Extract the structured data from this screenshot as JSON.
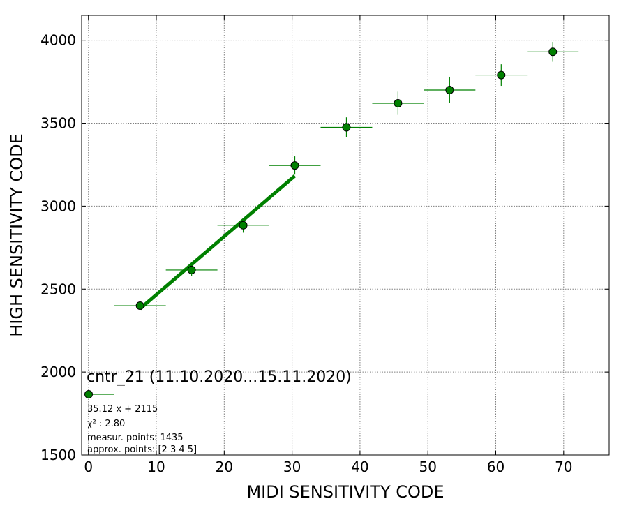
{
  "chart_data": {
    "type": "scatter",
    "xlabel": "MIDI SENSITIVITY CODE",
    "ylabel": "HIGH SENSITIVITY CODE",
    "xlim": [
      -1,
      76.7
    ],
    "ylim": [
      1500,
      4150
    ],
    "xticks": [
      0,
      10,
      20,
      30,
      40,
      50,
      60,
      70
    ],
    "yticks": [
      1500,
      2000,
      2500,
      3000,
      3500,
      4000
    ],
    "grid": true,
    "legend_placement": "lower-left",
    "colors": {
      "points": "#008000",
      "edge": "#000000",
      "fit": "#008000"
    },
    "series": [
      {
        "x": [
          7.6,
          15.2,
          22.8,
          30.4,
          38.0,
          45.6,
          53.2,
          60.8,
          68.4
        ],
        "y": [
          2400,
          2615,
          2885,
          3245,
          3475,
          3620,
          3700,
          3790,
          3930
        ],
        "xerr": [
          3.8,
          3.8,
          3.8,
          3.8,
          3.8,
          3.8,
          3.8,
          3.8,
          3.8
        ],
        "yerr": [
          20,
          38,
          45,
          55,
          60,
          70,
          80,
          65,
          60
        ]
      }
    ],
    "fit": {
      "slope": 35.12,
      "intercept": 2115,
      "x_start": 7.6,
      "x_end": 30.4
    },
    "legend": {
      "title": "cntr_21 (11.10.2020...15.11.2020)",
      "lines": [
        "35.12 x + 2115",
        "χ² : 2.80",
        "measur. points: 1435",
        "approx. points: [2 3 4 5]"
      ]
    }
  }
}
